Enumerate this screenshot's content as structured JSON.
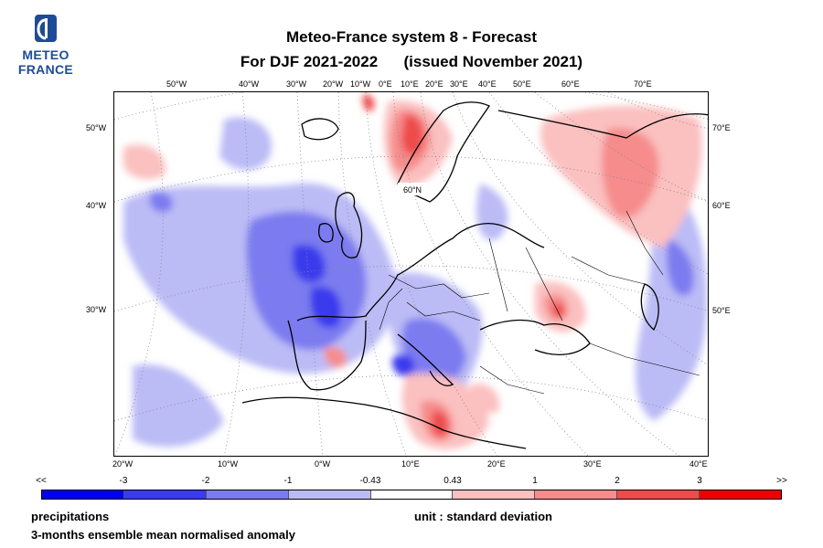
{
  "logo": {
    "line1": "METEO",
    "line2": "FRANCE"
  },
  "header": {
    "title_line1": "Meteo-France system 8  -  Forecast",
    "title_line2": "For DJF 2021-2022      (issued November 2021)"
  },
  "chart_data": {
    "type": "heatmap",
    "title": "Meteo-France system 8  -  Forecast",
    "subtitle": "For DJF 2021-2022      (issued November 2021)",
    "variable": "precipitations",
    "description": "3-months ensemble mean normalised anomaly",
    "unit": "unit : standard deviation",
    "top_lon_labels": [
      "50°W",
      "40°W",
      "30°W",
      "20°W",
      "10°W",
      "0°E",
      "10°E",
      "20°E",
      "30°E",
      "40°E",
      "50°E",
      "60°E",
      "70°E"
    ],
    "bottom_lon_labels": [
      "20°W",
      "10°W",
      "0°W",
      "10°E",
      "20°E",
      "30°E",
      "40°E"
    ],
    "left_lat_labels": [
      "50°W",
      "40°W",
      "30°W"
    ],
    "right_lat_labels": [
      "70°E",
      "60°E",
      "50°E"
    ],
    "inner_label": "60°N",
    "legend": {
      "end_labels": [
        "<<",
        ">>"
      ],
      "labels": [
        "-3",
        "-2",
        "-1",
        "-0.43",
        "0.43",
        "1",
        "2",
        "3"
      ],
      "bins": [
        "<-3",
        "-3..-2",
        "-2..-1",
        "-1..-0.43",
        "-0.43..0.43",
        "0.43..1",
        "1..2",
        "2..3",
        ">3"
      ],
      "colors": [
        "#0000ee",
        "#3a3aee",
        "#7b7bf0",
        "#bbbbf6",
        "#ffffff",
        "#fbc0c0",
        "#f68c8c",
        "#ee4c4c",
        "#ee0000"
      ]
    }
  },
  "footer": {
    "left1": "precipitations",
    "left2": "3-months ensemble mean normalised anomaly",
    "right": "unit : standard deviation"
  }
}
